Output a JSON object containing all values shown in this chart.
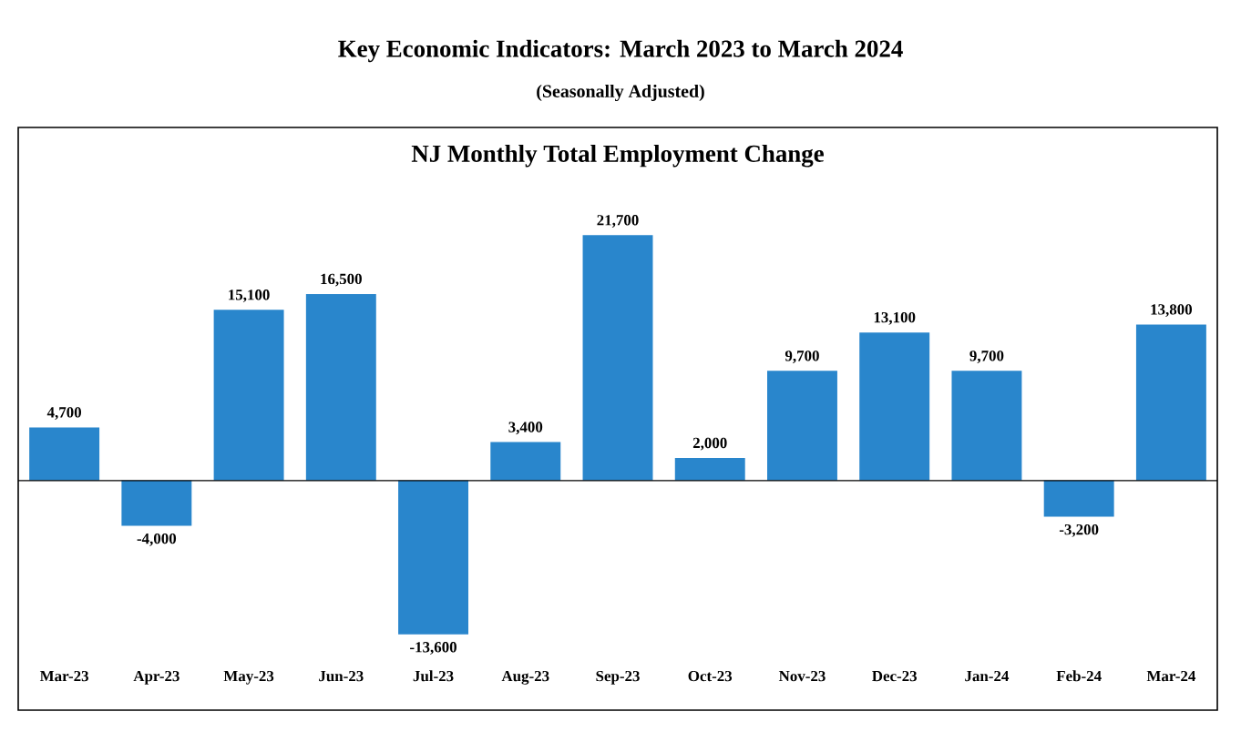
{
  "chart_data": {
    "type": "bar",
    "title": "Key Economic Indicators: March 2023 to March 2024",
    "subtitle": "(Seasonally Adjusted)",
    "annotations": [
      "NJ Monthly Total Employment Change"
    ],
    "categories": [
      "Mar-23",
      "Apr-23",
      "May-23",
      "Jun-23",
      "Jul-23",
      "Aug-23",
      "Sep-23",
      "Oct-23",
      "Nov-23",
      "Dec-23",
      "Jan-24",
      "Feb-24",
      "Mar-24"
    ],
    "values": [
      4700,
      -4000,
      15100,
      16500,
      -13600,
      3400,
      21700,
      2000,
      9700,
      13100,
      9700,
      -3200,
      13800
    ],
    "value_labels": [
      "4,700",
      "-4,000",
      "15,100",
      "16,500",
      "-13,600",
      "3,400",
      "21,700",
      "2,000",
      "9,700",
      "13,100",
      "9,700",
      "-3,200",
      "13,800"
    ],
    "color": "#2986cc"
  }
}
